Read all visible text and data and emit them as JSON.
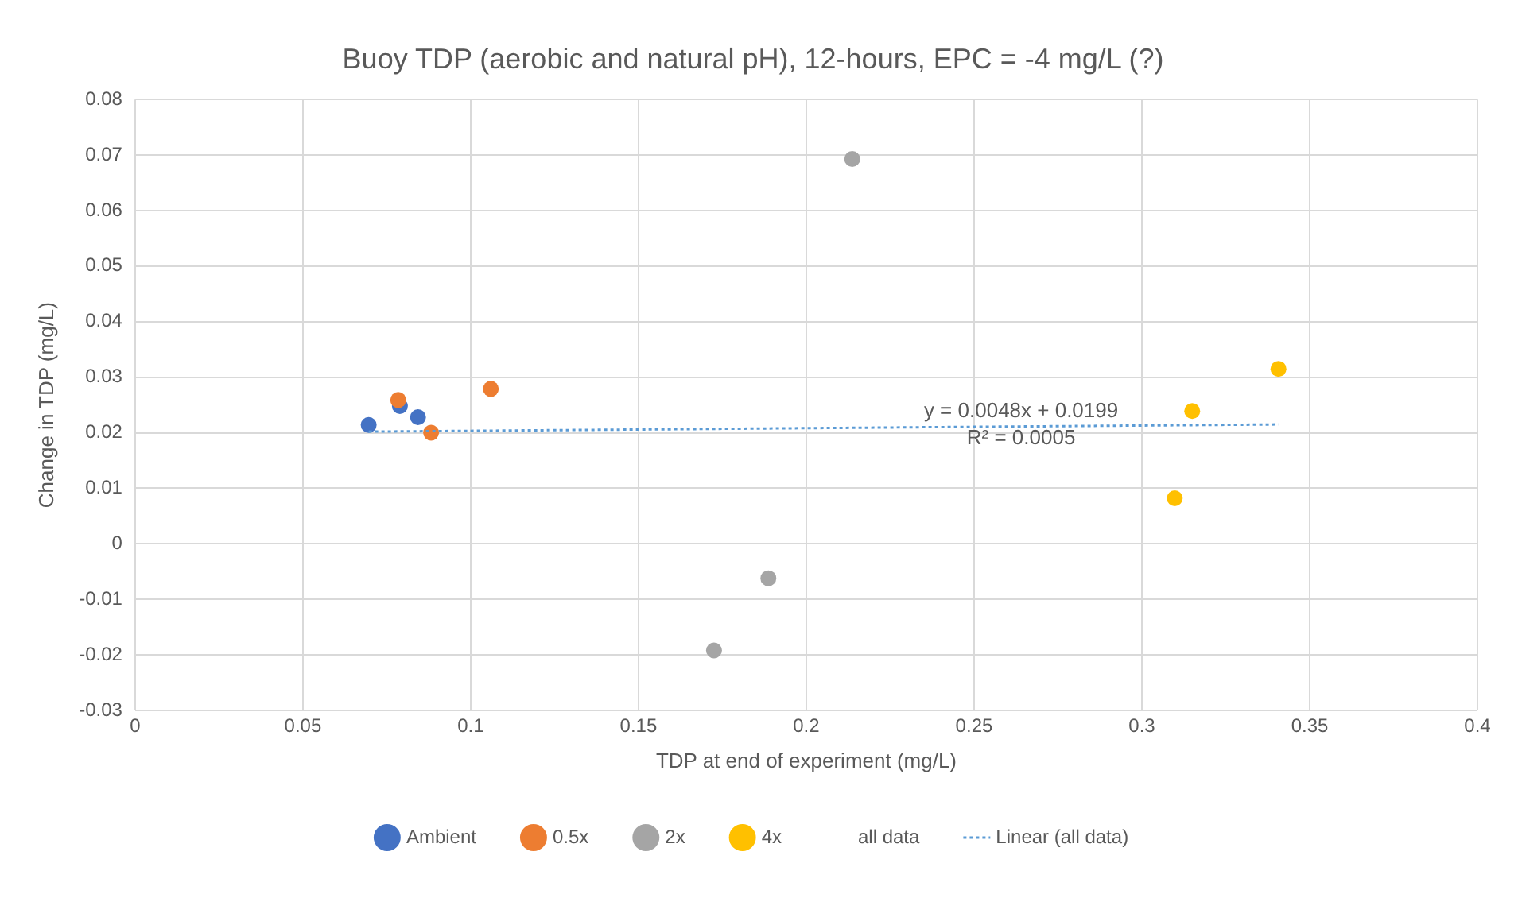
{
  "chart_data": {
    "type": "scatter",
    "title": "Buoy TDP (aerobic and natural pH), 12-hours, EPC = -4 mg/L (?)",
    "xlabel": "TDP at end of experiment (mg/L)",
    "ylabel": "Change in TDP (mg/L)",
    "xlim": [
      0,
      0.4
    ],
    "xticks": [
      0,
      0.05,
      0.1,
      0.15,
      0.2,
      0.25,
      0.3,
      0.35,
      0.4
    ],
    "ylim": [
      -0.03,
      0.08
    ],
    "yticks": [
      -0.03,
      -0.02,
      -0.01,
      0,
      0.01,
      0.02,
      0.03,
      0.04,
      0.05,
      0.06,
      0.07,
      0.08
    ],
    "grid": true,
    "legend": "bottom",
    "marker": "circle",
    "series": [
      {
        "name": "Ambient",
        "color": "#4472c4",
        "x": [
          0.0696,
          0.0789,
          0.0843
        ],
        "values": [
          0.0214,
          0.0248,
          0.0228
        ]
      },
      {
        "name": "0.5x",
        "color": "#ed7d31",
        "x": [
          0.0784,
          0.106,
          0.0882
        ],
        "values": [
          0.0259,
          0.0279,
          0.02
        ]
      },
      {
        "name": "2x",
        "color": "#a5a5a5",
        "x": [
          0.2137,
          0.1887,
          0.1725
        ],
        "values": [
          0.0693,
          -0.0062,
          -0.0192
        ]
      },
      {
        "name": "4x",
        "color": "#ffc000",
        "x": [
          0.3407,
          0.315,
          0.3098
        ],
        "values": [
          0.0315,
          0.0239,
          0.0082
        ]
      },
      {
        "name": "all data",
        "marker": "none"
      },
      {
        "name": "Linear (all data)",
        "type": "line",
        "color": "#5b9bd5",
        "line_style": "dotted",
        "marker": "none",
        "x": [
          0.0696,
          0.3407
        ],
        "values": [
          0.0202,
          0.0215
        ]
      }
    ],
    "annotations": [
      "y = 0.0048x + 0.0199",
      "R² = 0.0005"
    ]
  }
}
